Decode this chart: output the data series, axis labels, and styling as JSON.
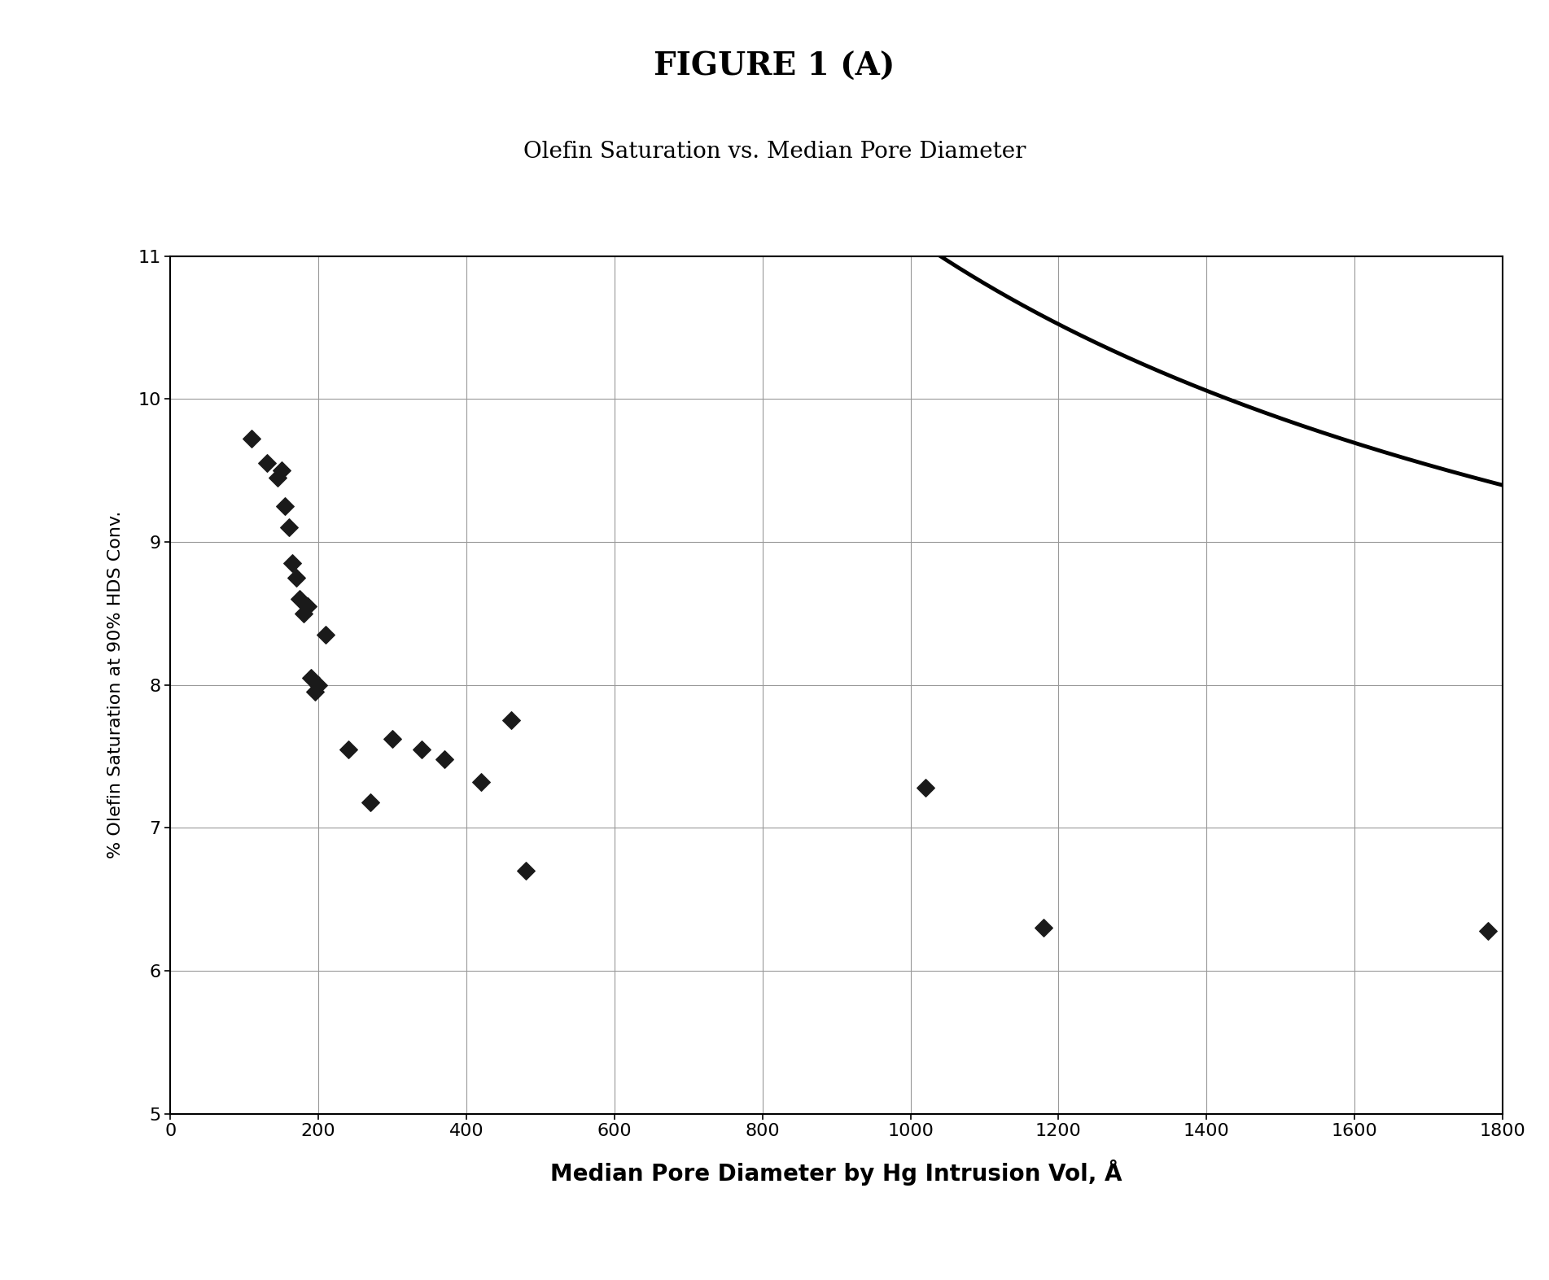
{
  "title_main": "FIGURE 1 (A)",
  "title_sub": "Olefin Saturation vs. Median Pore Diameter",
  "xlabel": "Median Pore Diameter by Hg Intrusion Vol, Å",
  "ylabel": "% Olefin Saturation at 90% HDS Conv.",
  "xlim": [
    0,
    1800
  ],
  "ylim": [
    5,
    11
  ],
  "xticks": [
    0,
    200,
    400,
    600,
    800,
    1000,
    1200,
    1400,
    1600,
    1800
  ],
  "yticks": [
    5,
    6,
    7,
    8,
    9,
    10,
    11
  ],
  "scatter_x": [
    110,
    130,
    145,
    150,
    155,
    160,
    165,
    170,
    175,
    180,
    185,
    190,
    195,
    200,
    210,
    240,
    270,
    300,
    340,
    370,
    420,
    460,
    480,
    1020,
    1180,
    1780
  ],
  "scatter_y": [
    9.72,
    9.55,
    9.45,
    9.5,
    9.25,
    9.1,
    8.85,
    8.75,
    8.6,
    8.5,
    8.55,
    8.05,
    7.95,
    8.0,
    8.35,
    7.55,
    7.18,
    7.62,
    7.55,
    7.48,
    7.32,
    7.75,
    6.7,
    7.28,
    6.3,
    6.28
  ],
  "curve_A": 5.85,
  "curve_B": 580.0,
  "curve_n": 0.68,
  "curve_x_start": 90,
  "curve_x_end": 1800,
  "background_color": "#ffffff",
  "scatter_color": "#1a1a1a",
  "curve_color": "#000000",
  "grid_color": "#999999",
  "title_main_fontsize": 28,
  "title_sub_fontsize": 20,
  "xlabel_fontsize": 20,
  "ylabel_fontsize": 16,
  "tick_fontsize": 16
}
